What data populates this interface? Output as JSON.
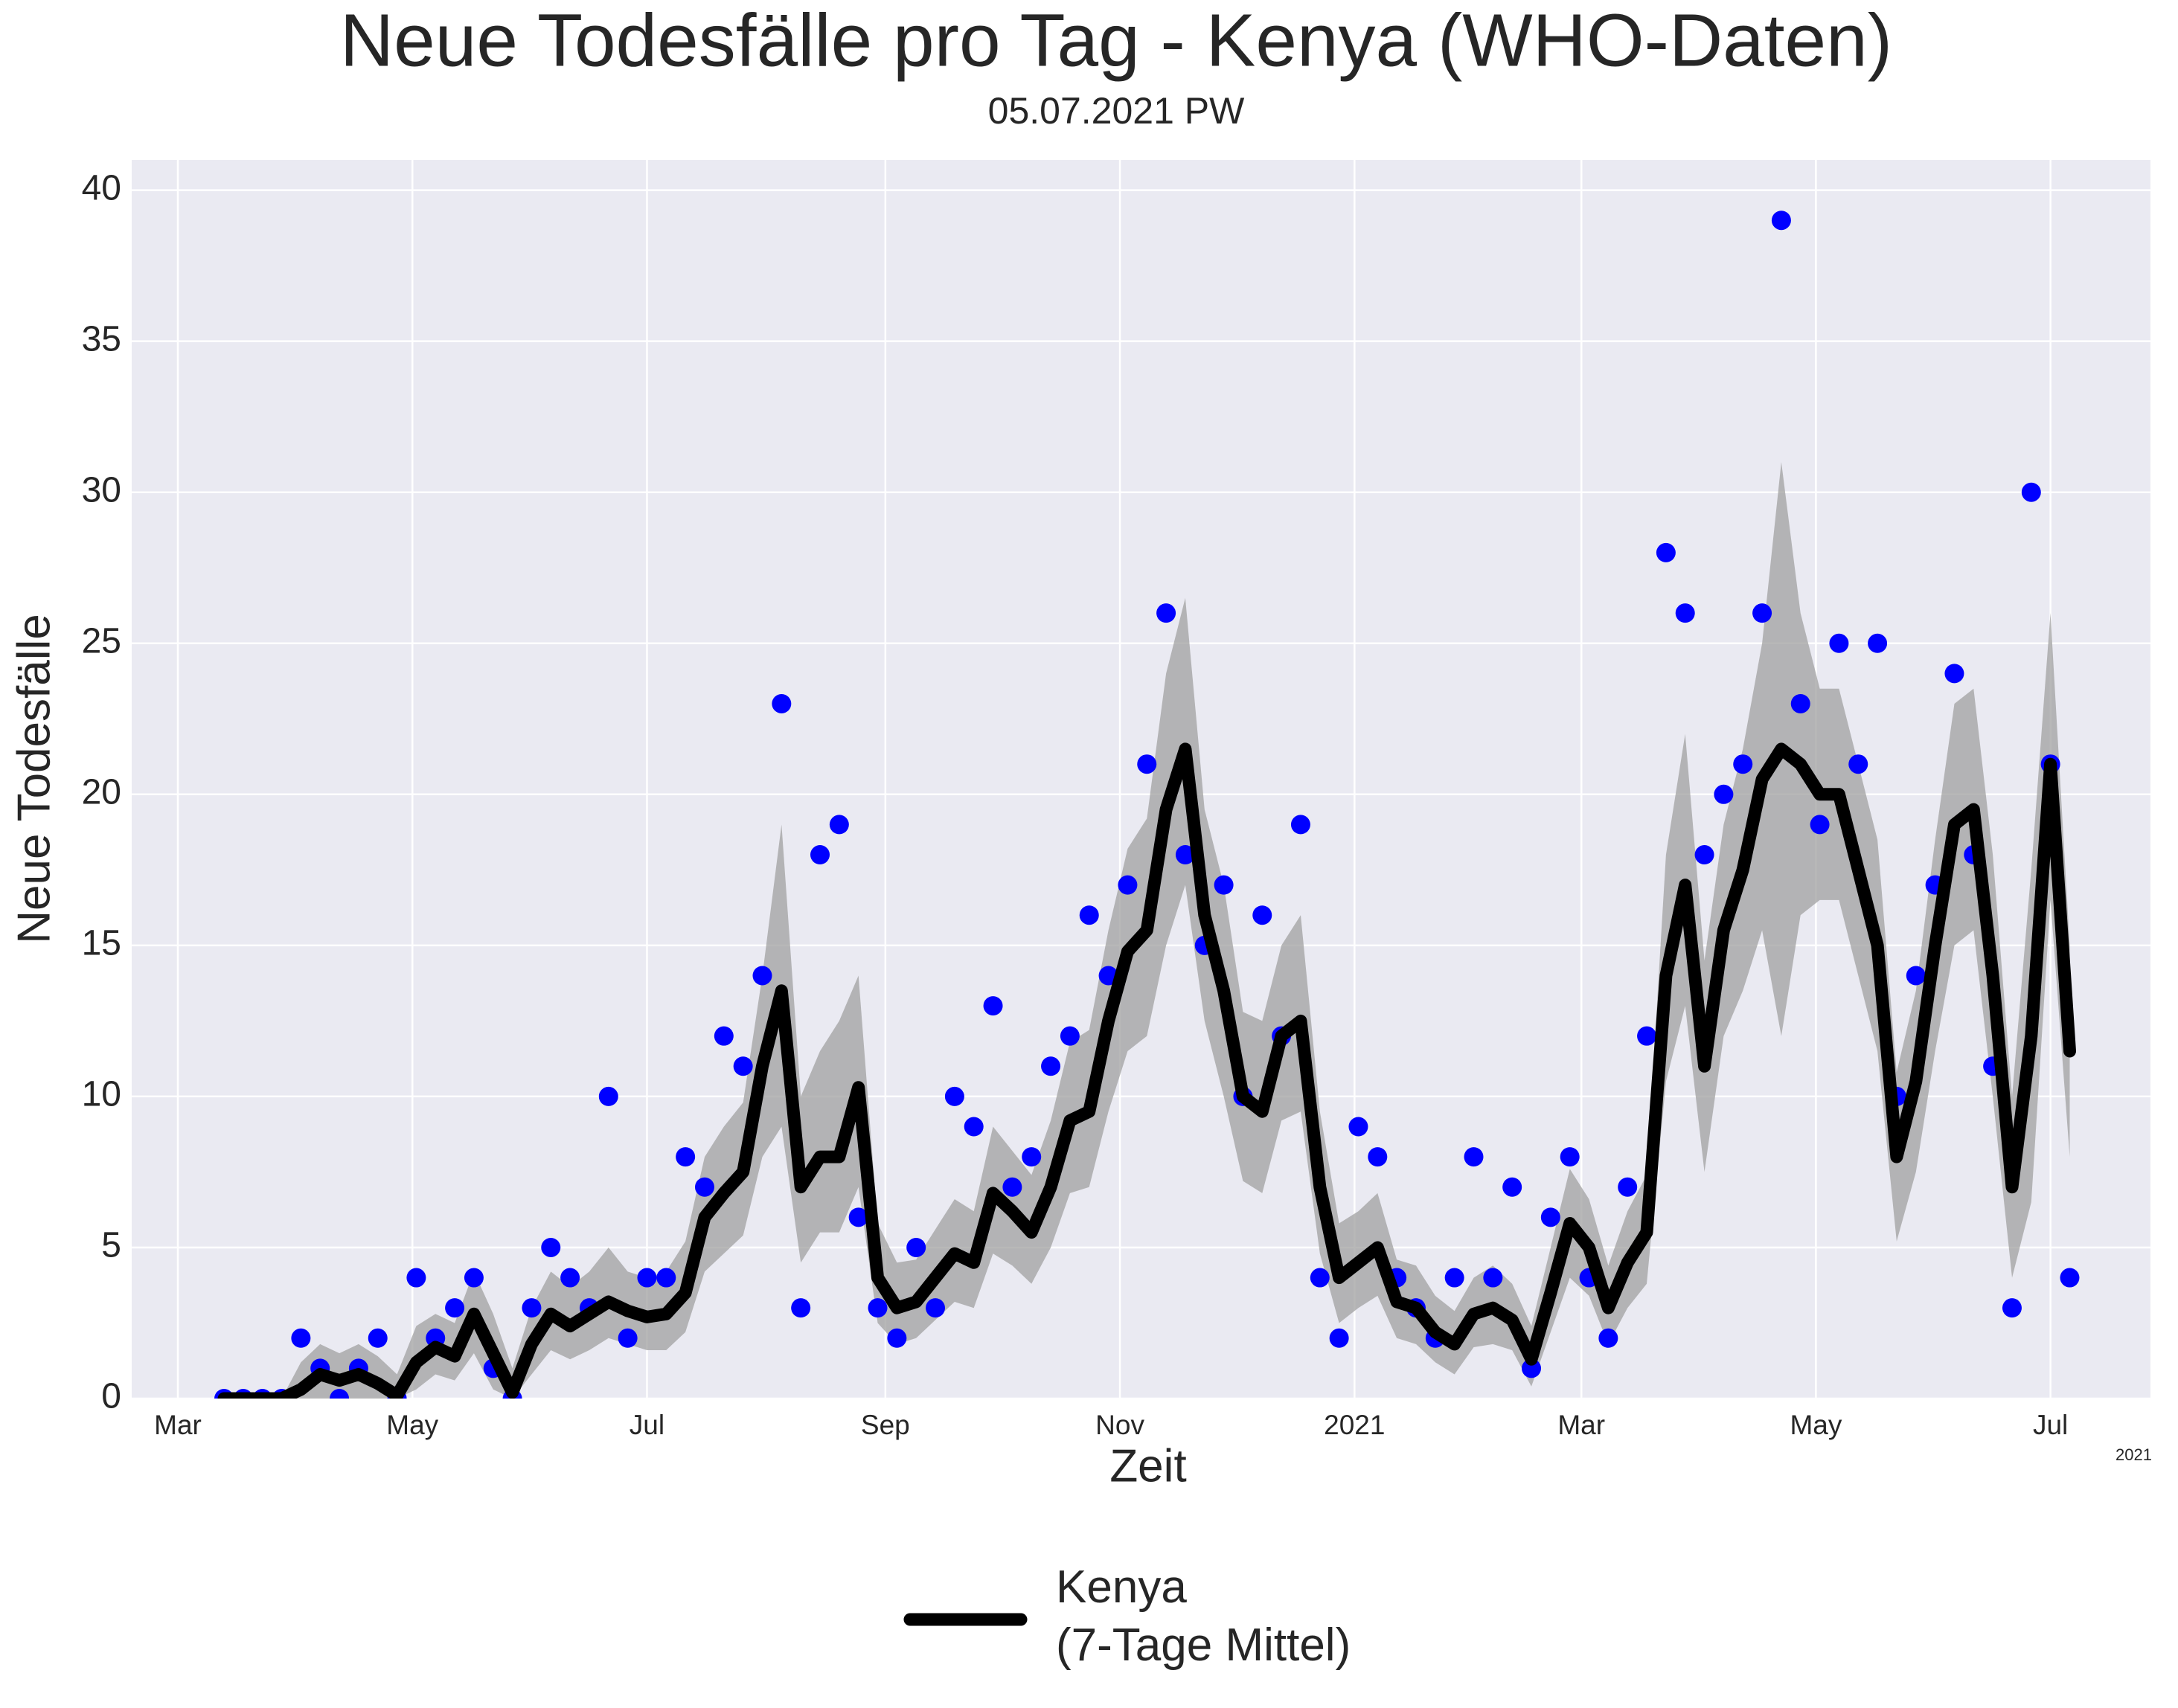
{
  "chart_data": {
    "type": "line",
    "title": "Neue Todesfälle pro Tag - Kenya (WHO-Daten)",
    "subtitle": "05.07.2021 PW",
    "x_label": "Zeit",
    "y_label": "Neue Todesfälle",
    "x_offset_label": "2021",
    "x": [
      12,
      17,
      22,
      27,
      32,
      37,
      42,
      47,
      52,
      57,
      62,
      67,
      72,
      77,
      82,
      87,
      92,
      97,
      102,
      107,
      112,
      117,
      122,
      127,
      132,
      137,
      142,
      147,
      152,
      157,
      162,
      167,
      172,
      177,
      182,
      187,
      192,
      197,
      202,
      207,
      212,
      217,
      222,
      227,
      232,
      237,
      242,
      247,
      252,
      257,
      262,
      267,
      272,
      277,
      282,
      287,
      292,
      297,
      302,
      307,
      312,
      317,
      322,
      327,
      332,
      337,
      342,
      347,
      352,
      357,
      362,
      367,
      372,
      377,
      382,
      387,
      392,
      397,
      402,
      407,
      412,
      417,
      422,
      427,
      432,
      437,
      442,
      447,
      452,
      457,
      462,
      467,
      472,
      477,
      482,
      487,
      492
    ],
    "series": [
      {
        "name": "Kenya\n(7-Tage Mittel)",
        "color": "#000000",
        "values": [
          0,
          0,
          0,
          0,
          0.3,
          0.8,
          0.6,
          0.8,
          0.5,
          0.1,
          1.2,
          1.7,
          1.4,
          2.8,
          1.5,
          0.2,
          1.8,
          2.8,
          2.4,
          2.8,
          3.2,
          2.9,
          2.7,
          2.8,
          3.5,
          6.0,
          6.8,
          7.5,
          11.0,
          13.5,
          7.0,
          8.0,
          8.0,
          10.3,
          4.0,
          3.0,
          3.2,
          4.0,
          4.8,
          4.5,
          6.8,
          6.2,
          5.5,
          7.0,
          9.2,
          9.5,
          12.5,
          14.8,
          15.5,
          19.5,
          21.5,
          16.0,
          13.5,
          10.0,
          9.5,
          12.0,
          12.5,
          7.0,
          4.0,
          4.5,
          5.0,
          3.2,
          3.0,
          2.2,
          1.8,
          2.8,
          3.0,
          2.6,
          1.3,
          3.5,
          5.8,
          5.0,
          3.0,
          4.5,
          5.5,
          14.0,
          17.0,
          11.0,
          15.5,
          17.5,
          20.5,
          21.5,
          21.0,
          20.0,
          20.0,
          17.5,
          15.0,
          8.0,
          10.5,
          15.0,
          19.0,
          19.5,
          14.0,
          7.0,
          12.0,
          21.0,
          11.5
        ]
      }
    ],
    "points": {
      "color": "#0000ff",
      "values": [
        0,
        0,
        0,
        0,
        2,
        1,
        0,
        1,
        2,
        0,
        4,
        2,
        3,
        4,
        1,
        0,
        3,
        5,
        4,
        3,
        10,
        2,
        4,
        4,
        8,
        7,
        12,
        11,
        14,
        23,
        3,
        18,
        19,
        6,
        3,
        2,
        5,
        3,
        10,
        9,
        13,
        7,
        8,
        11,
        12,
        16,
        14,
        17,
        21,
        26,
        18,
        15,
        17,
        10,
        16,
        12,
        19,
        4,
        2,
        9,
        8,
        4,
        3,
        2,
        4,
        8,
        4,
        7,
        1,
        6,
        8,
        4,
        2,
        7,
        12,
        28,
        26,
        18,
        20,
        21,
        26,
        39,
        23,
        19,
        25,
        21,
        25,
        10,
        14,
        17,
        24,
        18,
        11,
        3,
        30,
        21,
        4
      ]
    },
    "band": {
      "color": "#a0a0a0",
      "lower": [
        0,
        0,
        0,
        0,
        0,
        0,
        0,
        0,
        0,
        0,
        0.3,
        0.8,
        0.6,
        1.5,
        0.3,
        0,
        0.8,
        1.6,
        1.3,
        1.6,
        2.0,
        1.8,
        1.6,
        1.6,
        2.2,
        4.2,
        4.8,
        5.4,
        8.0,
        9.0,
        4.5,
        5.5,
        5.5,
        7.0,
        2.5,
        1.8,
        2.0,
        2.6,
        3.2,
        3.0,
        4.8,
        4.4,
        3.8,
        5.0,
        6.8,
        7.0,
        9.5,
        11.5,
        12.0,
        15.0,
        17.0,
        12.5,
        10.0,
        7.2,
        6.8,
        9.2,
        9.5,
        4.8,
        2.5,
        3.0,
        3.4,
        2.0,
        1.8,
        1.2,
        0.8,
        1.7,
        1.8,
        1.6,
        0.4,
        2.2,
        4.0,
        3.4,
        1.8,
        3.0,
        3.8,
        10.5,
        13.0,
        7.5,
        12.0,
        13.5,
        15.5,
        12.0,
        16.0,
        16.5,
        16.5,
        14.0,
        11.5,
        5.2,
        7.5,
        11.5,
        15.0,
        15.5,
        10.0,
        4.0,
        6.5,
        16.5,
        8.0
      ],
      "upper": [
        0,
        0,
        0,
        0,
        1.2,
        1.8,
        1.5,
        1.8,
        1.4,
        0.8,
        2.4,
        2.8,
        2.5,
        4.2,
        2.8,
        1.0,
        3.0,
        4.2,
        3.7,
        4.2,
        5.0,
        4.2,
        4.0,
        4.2,
        5.2,
        8.0,
        9.0,
        9.8,
        14.0,
        19.0,
        10.0,
        11.5,
        12.5,
        14.0,
        5.8,
        4.5,
        4.6,
        5.6,
        6.6,
        6.2,
        9.0,
        8.2,
        7.4,
        9.2,
        11.8,
        12.2,
        15.5,
        18.2,
        19.2,
        24.0,
        26.5,
        19.5,
        17.0,
        12.8,
        12.5,
        15.0,
        16.0,
        9.5,
        5.8,
        6.2,
        6.8,
        4.6,
        4.4,
        3.4,
        2.9,
        4.0,
        4.4,
        3.8,
        2.4,
        5.0,
        7.6,
        6.6,
        4.4,
        6.2,
        7.4,
        18.0,
        22.0,
        14.5,
        19.0,
        21.5,
        25.0,
        31.0,
        26.0,
        23.5,
        23.5,
        21.0,
        18.5,
        10.8,
        13.5,
        18.5,
        23.0,
        23.5,
        18.0,
        10.0,
        17.5,
        26.0,
        15.0
      ]
    },
    "xlim": [
      -12,
      513
    ],
    "xticks": [
      {
        "value": 0,
        "label": "Mar"
      },
      {
        "value": 61,
        "label": "May"
      },
      {
        "value": 122,
        "label": "Jul"
      },
      {
        "value": 184,
        "label": "Sep"
      },
      {
        "value": 245,
        "label": "Nov"
      },
      {
        "value": 306,
        "label": "2021"
      },
      {
        "value": 365,
        "label": "Mar"
      },
      {
        "value": 426,
        "label": "May"
      },
      {
        "value": 487,
        "label": "Jul"
      }
    ],
    "ylim": [
      0,
      41
    ],
    "yticks": [
      0,
      5,
      10,
      15,
      20,
      25,
      30,
      35,
      40
    ],
    "grid": true,
    "background": "#eaeaf2"
  }
}
